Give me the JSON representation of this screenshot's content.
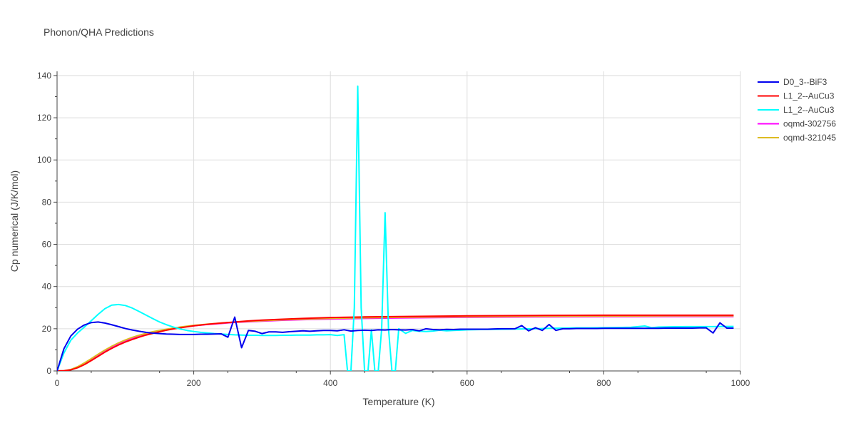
{
  "chart_data": {
    "type": "line",
    "title": "Phonon/QHA Predictions",
    "xlabel": "Temperature (K)",
    "ylabel": "Cp numerical (J/K/mol)",
    "xlim": [
      0,
      1000
    ],
    "ylim": [
      0,
      142
    ],
    "x_ticks": [
      0,
      200,
      400,
      600,
      800,
      1000
    ],
    "y_ticks": [
      0,
      20,
      40,
      60,
      80,
      100,
      120,
      140
    ],
    "grid": true,
    "legend_position": "top-right",
    "series": [
      {
        "name": "D0_3--BiF3",
        "color": "#0000ee",
        "x": [
          0,
          10,
          20,
          30,
          40,
          50,
          60,
          70,
          80,
          90,
          100,
          110,
          120,
          130,
          140,
          150,
          160,
          170,
          180,
          190,
          200,
          210,
          220,
          230,
          240,
          250,
          260,
          270,
          280,
          290,
          300,
          310,
          320,
          330,
          340,
          350,
          360,
          370,
          380,
          390,
          400,
          410,
          420,
          430,
          440,
          450,
          460,
          470,
          480,
          490,
          500,
          510,
          520,
          530,
          540,
          550,
          560,
          570,
          580,
          590,
          600,
          610,
          620,
          630,
          640,
          650,
          660,
          670,
          680,
          690,
          700,
          710,
          720,
          730,
          740,
          750,
          760,
          770,
          780,
          790,
          800,
          810,
          820,
          830,
          840,
          850,
          860,
          870,
          880,
          890,
          900,
          910,
          920,
          930,
          940,
          950,
          960,
          970,
          980,
          990
        ],
        "y": [
          0,
          10.5,
          16.5,
          19.8,
          21.8,
          22.9,
          23.2,
          22.7,
          21.9,
          21.0,
          20.1,
          19.4,
          18.8,
          18.3,
          17.9,
          17.7,
          17.5,
          17.4,
          17.3,
          17.3,
          17.3,
          17.4,
          17.4,
          17.5,
          17.6,
          16.0,
          25.5,
          11.0,
          19.2,
          18.8,
          17.7,
          18.5,
          18.5,
          18.3,
          18.6,
          18.8,
          19.0,
          18.8,
          19.0,
          19.2,
          19.2,
          19.0,
          19.5,
          18.9,
          19.2,
          19.3,
          19.2,
          19.5,
          19.4,
          19.6,
          19.5,
          19.4,
          19.6,
          19.0,
          20.0,
          19.6,
          19.5,
          19.7,
          19.6,
          19.8,
          19.8,
          19.8,
          19.8,
          19.8,
          19.9,
          20.0,
          20.0,
          20.0,
          21.5,
          19.0,
          20.5,
          19.2,
          22.0,
          19.2,
          20.0,
          20.0,
          20.1,
          20.1,
          20.1,
          20.1,
          20.2,
          20.2,
          20.2,
          20.2,
          20.2,
          20.2,
          20.2,
          20.2,
          20.2,
          20.3,
          20.3,
          20.3,
          20.3,
          20.3,
          20.4,
          20.4,
          18.0,
          22.8,
          20.3,
          20.3
        ]
      },
      {
        "name": "L1_2--AuCu3",
        "color": "#ff0000",
        "x": [
          0,
          10,
          20,
          30,
          40,
          50,
          60,
          70,
          80,
          90,
          100,
          110,
          120,
          130,
          140,
          150,
          160,
          170,
          180,
          190,
          200,
          220,
          240,
          260,
          280,
          300,
          330,
          360,
          400,
          450,
          500,
          600,
          700,
          800,
          900,
          990
        ],
        "y": [
          0,
          0.1,
          0.5,
          1.5,
          3.0,
          4.9,
          6.9,
          8.9,
          10.7,
          12.3,
          13.7,
          14.9,
          16.0,
          17.0,
          17.8,
          18.6,
          19.3,
          19.9,
          20.4,
          20.9,
          21.4,
          22.1,
          22.7,
          23.2,
          23.7,
          24.1,
          24.5,
          24.9,
          25.3,
          25.6,
          25.8,
          26.1,
          26.3,
          26.4,
          26.4,
          26.4
        ]
      },
      {
        "name": "L1_2--AuCu3",
        "color": "#00ffff",
        "x": [
          0,
          10,
          20,
          30,
          40,
          50,
          60,
          70,
          80,
          90,
          100,
          110,
          120,
          130,
          140,
          150,
          160,
          170,
          180,
          190,
          200,
          210,
          220,
          230,
          240,
          250,
          260,
          270,
          280,
          290,
          300,
          310,
          320,
          330,
          340,
          350,
          360,
          370,
          380,
          390,
          400,
          410,
          420,
          425,
          430,
          435,
          440,
          445,
          450,
          455,
          460,
          465,
          470,
          475,
          480,
          485,
          490,
          495,
          500,
          510,
          520,
          530,
          540,
          550,
          560,
          570,
          580,
          590,
          600,
          620,
          640,
          660,
          680,
          700,
          720,
          740,
          760,
          780,
          800,
          820,
          840,
          860,
          870,
          880,
          900,
          920,
          940,
          960,
          980,
          990
        ],
        "y": [
          0,
          8.5,
          14.5,
          18.0,
          20.8,
          23.8,
          26.8,
          29.5,
          31.2,
          31.5,
          31.0,
          29.8,
          28.2,
          26.5,
          24.8,
          23.2,
          21.9,
          20.8,
          19.9,
          19.2,
          18.7,
          18.3,
          18.0,
          17.7,
          17.5,
          17.3,
          17.1,
          17.0,
          16.9,
          16.9,
          16.8,
          16.8,
          16.8,
          16.9,
          16.9,
          17.0,
          17.0,
          17.0,
          17.1,
          17.1,
          17.2,
          16.8,
          17.2,
          0,
          0,
          30,
          135,
          30,
          0,
          0,
          19.5,
          0,
          0,
          20,
          75,
          20,
          0,
          0,
          20,
          17.8,
          19.2,
          18.8,
          18.7,
          18.9,
          19.3,
          19.0,
          19.2,
          19.3,
          19.5,
          19.6,
          19.7,
          19.8,
          19.9,
          20.0,
          20.2,
          20.3,
          20.4,
          20.4,
          20.5,
          20.6,
          20.7,
          21.3,
          20.5,
          20.8,
          20.9,
          21.0,
          21.0,
          21.0,
          21.1,
          21.1
        ]
      },
      {
        "name": "oqmd-302756",
        "color": "#ff00ff",
        "x": [
          0,
          10,
          20,
          30,
          40,
          50,
          60,
          70,
          80,
          90,
          100,
          110,
          120,
          130,
          140,
          150,
          160,
          170,
          180,
          190,
          200,
          220,
          240,
          260,
          280,
          300,
          330,
          360,
          400,
          450,
          500,
          600,
          700,
          800,
          900,
          990
        ],
        "y": [
          0,
          0.1,
          0.6,
          1.8,
          3.5,
          5.5,
          7.5,
          9.5,
          11.3,
          12.9,
          14.3,
          15.5,
          16.6,
          17.5,
          18.3,
          19.0,
          19.6,
          20.1,
          20.6,
          21.0,
          21.4,
          22.0,
          22.5,
          23.0,
          23.3,
          23.6,
          24.0,
          24.3,
          24.6,
          24.9,
          25.1,
          25.4,
          25.6,
          25.7,
          25.8,
          25.8
        ]
      },
      {
        "name": "oqmd-321045",
        "color": "#ddbb22",
        "x": [
          0,
          10,
          20,
          30,
          40,
          50,
          60,
          70,
          80,
          90,
          100,
          110,
          120,
          130,
          140,
          150,
          160,
          170,
          180,
          190,
          200,
          220,
          240,
          260,
          280,
          300,
          330,
          360,
          400,
          450,
          500,
          600,
          700,
          800,
          900,
          990
        ],
        "y": [
          0,
          0.1,
          0.7,
          2.0,
          3.8,
          5.8,
          7.9,
          9.9,
          11.7,
          13.3,
          14.7,
          15.9,
          16.9,
          17.8,
          18.6,
          19.2,
          19.8,
          20.3,
          20.8,
          21.2,
          21.6,
          22.2,
          22.7,
          23.1,
          23.5,
          23.8,
          24.2,
          24.5,
          24.9,
          25.2,
          25.4,
          25.7,
          25.9,
          26.0,
          26.1,
          26.1
        ]
      }
    ]
  }
}
